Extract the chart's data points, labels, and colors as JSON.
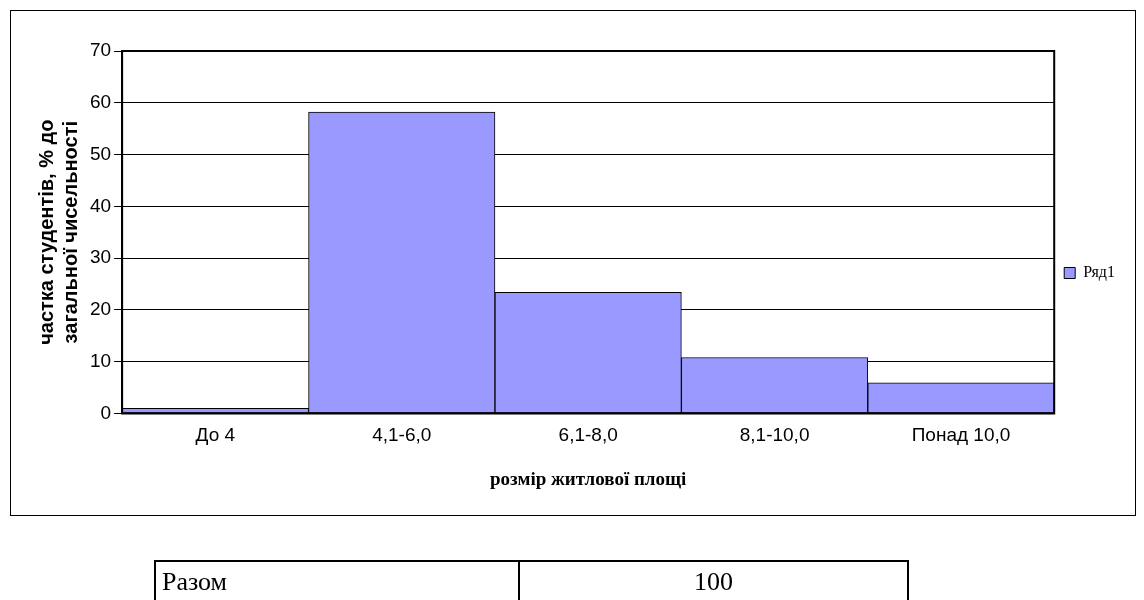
{
  "chart_data": {
    "type": "bar",
    "xlabel": "розмір житлової площі",
    "ylabel": "частка студентів, % до загальної чисельності",
    "categories": [
      "До 4",
      "4,1-6,0",
      "6,1-8,0",
      "8,1-10,0",
      "Понад 10,0"
    ],
    "series": [
      {
        "name": "Ряд1",
        "color": "#9999ff",
        "values": [
          1.0,
          58.2,
          23.4,
          10.8,
          5.9
        ]
      }
    ],
    "ylim": [
      0,
      70
    ],
    "yticks": [
      0,
      10,
      20,
      30,
      40,
      50,
      60,
      70
    ],
    "grid": "y",
    "legend": "right",
    "annotations": [
      "Разом",
      "100"
    ]
  }
}
